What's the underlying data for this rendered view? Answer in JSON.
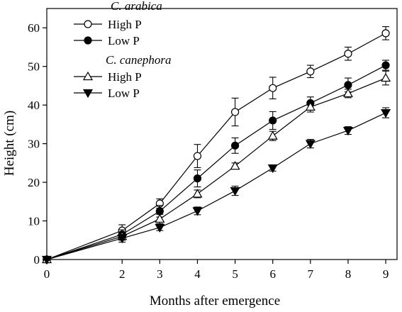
{
  "chart_data": {
    "type": "line",
    "xlabel": "Months after emergence",
    "ylabel": "Height (cm)",
    "xlim": [
      0,
      9.3
    ],
    "ylim": [
      0,
      65
    ],
    "xticks": [
      0,
      2,
      3,
      4,
      5,
      6,
      7,
      8,
      9
    ],
    "yticks": [
      0,
      10,
      20,
      30,
      40,
      50,
      60
    ],
    "grid": false,
    "legend_position": "top-left",
    "legend": {
      "group1_title": "C. arabica",
      "group2_title": "C. canephora"
    },
    "series": [
      {
        "name": "High P",
        "group": "C. arabica",
        "marker": "circle-open",
        "x": [
          0,
          2,
          3,
          4,
          5,
          6,
          7,
          8,
          9
        ],
        "y": [
          0,
          7.5,
          14.5,
          26.8,
          38.2,
          44.4,
          48.7,
          53.3,
          58.6
        ],
        "err": [
          0,
          1.5,
          1.2,
          3.0,
          3.6,
          2.8,
          1.6,
          1.7,
          1.7
        ]
      },
      {
        "name": "Low P",
        "group": "C. arabica",
        "marker": "circle-filled",
        "x": [
          0,
          2,
          3,
          4,
          5,
          6,
          7,
          8,
          9
        ],
        "y": [
          0,
          6.5,
          12.5,
          21.0,
          29.5,
          36.0,
          40.5,
          45.2,
          50.3
        ],
        "err": [
          0,
          1.2,
          1.5,
          2.2,
          2.0,
          2.3,
          1.6,
          1.8,
          1.3
        ]
      },
      {
        "name": "High P",
        "group": "C. canephora",
        "marker": "triangle-open",
        "x": [
          0,
          2,
          3,
          4,
          5,
          6,
          7,
          8,
          9
        ],
        "y": [
          0,
          6.0,
          10.5,
          17.0,
          24.2,
          32.0,
          39.5,
          43.0,
          47.0
        ],
        "err": [
          0,
          1.0,
          1.2,
          1.0,
          0.8,
          1.2,
          1.3,
          1.1,
          1.8
        ]
      },
      {
        "name": "Low P",
        "group": "C. canephora",
        "marker": "triangle-down-filled",
        "x": [
          0,
          2,
          3,
          4,
          5,
          6,
          7,
          8,
          9
        ],
        "y": [
          0,
          5.5,
          8.3,
          12.6,
          17.8,
          23.7,
          30.0,
          33.4,
          38.0
        ],
        "err": [
          0,
          1.0,
          0.8,
          1.0,
          1.2,
          0.8,
          1.1,
          1.0,
          1.3
        ]
      }
    ]
  }
}
